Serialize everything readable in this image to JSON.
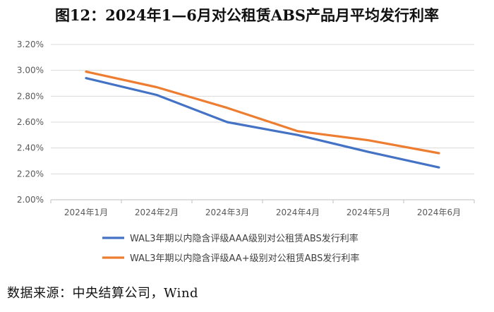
{
  "title": "图12：2024年1—6月对公租赁ABS产品月平均发行利率",
  "source": "数据来源：中央结算公司，Wind",
  "chart_data": {
    "type": "line",
    "categories": [
      "2024年1月",
      "2024年2月",
      "2024年3月",
      "2024年4月",
      "2024年5月",
      "2024年6月"
    ],
    "y_tick_labels": [
      "2.00%",
      "2.20%",
      "2.40%",
      "2.60%",
      "2.80%",
      "3.00%",
      "3.20%"
    ],
    "y_ticks": [
      2.0,
      2.2,
      2.4,
      2.6,
      2.8,
      3.0,
      3.2
    ],
    "ylim": [
      2.0,
      3.2
    ],
    "grid": true,
    "legend_position": "bottom",
    "series": [
      {
        "name": "WAL3年期以内隐含评级AAA级别对公租赁ABS发行利率",
        "values": [
          2.94,
          2.81,
          2.6,
          2.5,
          2.37,
          2.25
        ],
        "color": "#4472C4"
      },
      {
        "name": "WAL3年期以内隐含评级AA+级别对公租赁ABS发行利率",
        "values": [
          2.99,
          2.87,
          2.71,
          2.53,
          2.46,
          2.36
        ],
        "color": "#ED7D31"
      }
    ]
  }
}
